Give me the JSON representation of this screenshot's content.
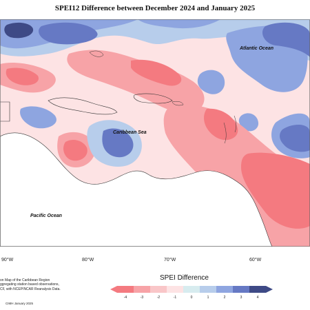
{
  "title": "SPEI12 Difference between December 2024 and January 2025",
  "map": {
    "labels": {
      "atlantic": "Atlantic Ocean",
      "caribbean": "Caribbean Sea",
      "pacific": "Pacific Ocean"
    },
    "longitudes": [
      "90°W",
      "80°W",
      "70°W",
      "60°W"
    ]
  },
  "notes": {
    "lines": [
      "on Map of the Caribbean Region",
      "ggregating station based observations,",
      "CF, with NCEP/NCAR Reanalysis Data."
    ],
    "credit": "CIMH January 2025"
  },
  "legend": {
    "title": "SPEI Difference",
    "ticks": [
      "-4",
      "-3",
      "-2",
      "-1",
      "0",
      "1",
      "2",
      "3",
      "4"
    ],
    "colors": [
      "#f47a80",
      "#f7a3a7",
      "#f9c6c8",
      "#fde3e4",
      "#d7ecef",
      "#b7cdeb",
      "#8ea5e0",
      "#6679c4",
      "#3e4a86"
    ]
  },
  "colors": {
    "strong_dry": "#f47a80",
    "moderate_dry": "#f7a3a7",
    "light_dry": "#fde3e4",
    "neutral": "#d7ecef",
    "light_wet": "#b7cdeb",
    "moderate_wet": "#8ea5e0",
    "strong_wet": "#3e4a86",
    "land": "#ffffff"
  }
}
